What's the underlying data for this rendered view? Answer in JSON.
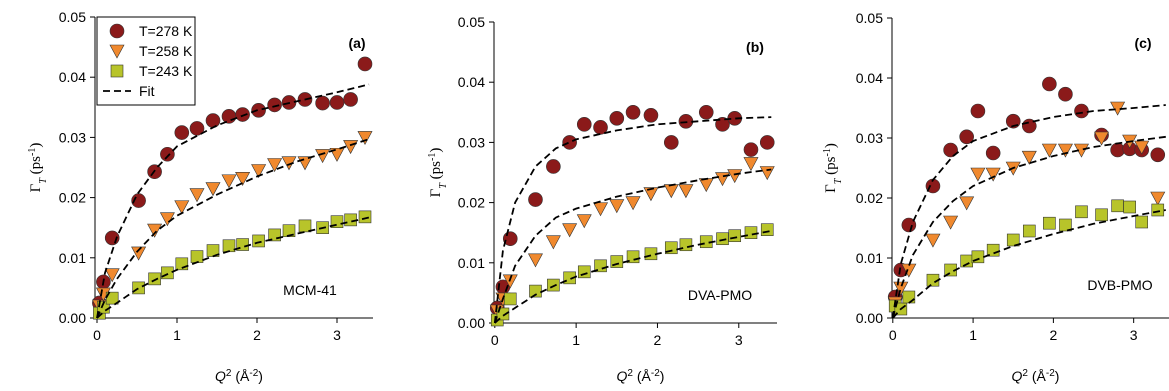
{
  "chart_data": [
    {
      "type": "scatter",
      "annotations": [
        "(a)",
        "MCM-41"
      ],
      "xlabel": [
        "Q",
        "2",
        " (Å",
        "-2",
        ")"
      ],
      "ylabel": [
        "Γ",
        "T",
        " (ps",
        "-1",
        ")"
      ],
      "xlim": [
        -0.025,
        3.45
      ],
      "ylim": [
        0,
        0.05
      ],
      "xticks": [
        0,
        1,
        2,
        3
      ],
      "yticks": [
        {
          "value": 0,
          "label": "0.00"
        },
        0.01,
        0.02,
        0.03,
        0.04,
        0.05
      ],
      "legend": "upper left",
      "series": [
        {
          "name": "T=278 K",
          "color": "#8b1a1a",
          "marker": "circle",
          "x": [
            0.03,
            0.08,
            0.19,
            0.52,
            0.72,
            0.88,
            1.06,
            1.25,
            1.45,
            1.65,
            1.82,
            2.02,
            2.22,
            2.4,
            2.6,
            2.82,
            3.0,
            3.17,
            3.35
          ],
          "values": [
            0.0025,
            0.006,
            0.0133,
            0.0195,
            0.0243,
            0.0272,
            0.0308,
            0.0315,
            0.0328,
            0.0335,
            0.0338,
            0.0345,
            0.0354,
            0.0358,
            0.0363,
            0.0357,
            0.0358,
            0.0363,
            0.0422
          ]
        },
        {
          "name": "T=258 K",
          "color": "#f0892e",
          "marker": "triangle",
          "x": [
            0.03,
            0.08,
            0.19,
            0.52,
            0.72,
            0.88,
            1.06,
            1.25,
            1.45,
            1.65,
            1.82,
            2.02,
            2.22,
            2.4,
            2.6,
            2.82,
            3.0,
            3.17,
            3.35
          ],
          "values": [
            0.002,
            0.004,
            0.0072,
            0.0108,
            0.0146,
            0.0165,
            0.0185,
            0.0205,
            0.0215,
            0.0228,
            0.0232,
            0.0245,
            0.0255,
            0.0258,
            0.0258,
            0.027,
            0.0272,
            0.0285,
            0.03
          ]
        },
        {
          "name": "T=243 K",
          "color": "#b8c42a",
          "marker": "square",
          "x": [
            0.03,
            0.08,
            0.19,
            0.52,
            0.72,
            0.88,
            1.06,
            1.25,
            1.45,
            1.65,
            1.82,
            2.02,
            2.22,
            2.4,
            2.6,
            2.82,
            3.0,
            3.17,
            3.35
          ],
          "values": [
            0.0008,
            0.0018,
            0.0033,
            0.005,
            0.0065,
            0.0075,
            0.009,
            0.0102,
            0.0112,
            0.012,
            0.0122,
            0.0128,
            0.0138,
            0.0145,
            0.0153,
            0.015,
            0.016,
            0.0163,
            0.0168
          ]
        },
        {
          "name": "Fit",
          "color": "#000000",
          "marker": "dashed",
          "x": [
            0,
            0.1,
            0.25,
            0.5,
            0.75,
            1,
            1.5,
            2,
            2.5,
            3,
            3.4
          ],
          "values": [
            0,
            0.0075,
            0.0135,
            0.0205,
            0.025,
            0.0285,
            0.032,
            0.0345,
            0.036,
            0.0375,
            0.0388
          ]
        },
        {
          "color": "#000000",
          "marker": "dashed",
          "x": [
            0,
            0.1,
            0.25,
            0.5,
            0.75,
            1,
            1.5,
            2,
            2.5,
            3,
            3.4
          ],
          "values": [
            0,
            0.003,
            0.0065,
            0.011,
            0.0145,
            0.017,
            0.0205,
            0.0235,
            0.026,
            0.028,
            0.0297
          ]
        },
        {
          "color": "#000000",
          "marker": "dashed",
          "x": [
            0,
            0.1,
            0.25,
            0.5,
            0.75,
            1,
            1.5,
            2,
            2.5,
            3,
            3.4
          ],
          "values": [
            0,
            0.0012,
            0.0025,
            0.0048,
            0.0065,
            0.008,
            0.0105,
            0.0125,
            0.014,
            0.0155,
            0.0167
          ]
        }
      ]
    },
    {
      "type": "scatter",
      "annotations": [
        "(b)",
        "DVA-PMO"
      ],
      "xlabel": [
        "Q",
        "2",
        " (Å",
        "-2",
        ")"
      ],
      "ylabel": [
        "Γ",
        "T",
        " (ps",
        "-1",
        ")"
      ],
      "xlim": [
        -0.01,
        3.47
      ],
      "ylim": [
        0,
        0.05
      ],
      "xticks": [
        0,
        1,
        2,
        3
      ],
      "yticks": [
        {
          "value": 0,
          "label": "0.00"
        },
        0.01,
        0.02,
        0.03,
        0.04,
        0.05
      ],
      "series": [
        {
          "color": "#8b1a1a",
          "marker": "circle",
          "x": [
            0.03,
            0.1,
            0.19,
            0.5,
            0.72,
            0.92,
            1.1,
            1.3,
            1.5,
            1.7,
            1.92,
            2.17,
            2.35,
            2.6,
            2.8,
            2.95,
            3.15,
            3.35
          ],
          "values": [
            0.0025,
            0.006,
            0.014,
            0.0205,
            0.026,
            0.03,
            0.033,
            0.0325,
            0.034,
            0.035,
            0.0345,
            0.03,
            0.0335,
            0.035,
            0.033,
            0.034,
            0.0288,
            0.03
          ]
        },
        {
          "color": "#f0892e",
          "marker": "triangle",
          "x": [
            0.03,
            0.1,
            0.19,
            0.5,
            0.72,
            0.92,
            1.1,
            1.3,
            1.5,
            1.7,
            1.92,
            2.17,
            2.35,
            2.6,
            2.8,
            2.95,
            3.15,
            3.35
          ],
          "values": [
            0.002,
            0.004,
            0.007,
            0.0105,
            0.0135,
            0.0155,
            0.017,
            0.019,
            0.0195,
            0.02,
            0.0215,
            0.022,
            0.022,
            0.023,
            0.024,
            0.0245,
            0.0265,
            0.025
          ]
        },
        {
          "color": "#b8c42a",
          "marker": "square",
          "x": [
            0.03,
            0.1,
            0.19,
            0.5,
            0.72,
            0.92,
            1.1,
            1.3,
            1.5,
            1.7,
            1.92,
            2.17,
            2.35,
            2.6,
            2.8,
            2.95,
            3.15,
            3.35
          ],
          "values": [
            0.0005,
            0.0015,
            0.004,
            0.0053,
            0.0063,
            0.0075,
            0.0085,
            0.0095,
            0.0102,
            0.011,
            0.0115,
            0.0125,
            0.013,
            0.0135,
            0.014,
            0.0145,
            0.015,
            0.0155
          ]
        },
        {
          "color": "#000000",
          "marker": "dashed",
          "x": [
            0,
            0.1,
            0.25,
            0.5,
            0.75,
            1,
            1.5,
            2,
            2.5,
            3,
            3.4
          ],
          "values": [
            0,
            0.012,
            0.02,
            0.026,
            0.029,
            0.0305,
            0.032,
            0.033,
            0.0335,
            0.034,
            0.0342
          ]
        },
        {
          "color": "#000000",
          "marker": "dashed",
          "x": [
            0,
            0.1,
            0.25,
            0.5,
            0.75,
            1,
            1.5,
            2,
            2.5,
            3,
            3.4
          ],
          "values": [
            0,
            0.004,
            0.0095,
            0.0145,
            0.0175,
            0.019,
            0.021,
            0.0225,
            0.0237,
            0.0248,
            0.0255
          ]
        },
        {
          "color": "#000000",
          "marker": "dashed",
          "x": [
            0,
            0.1,
            0.25,
            0.5,
            0.75,
            1,
            1.5,
            2,
            2.5,
            3,
            3.4
          ],
          "values": [
            0,
            0.0012,
            0.0025,
            0.0047,
            0.0063,
            0.0077,
            0.0098,
            0.0115,
            0.013,
            0.0143,
            0.0153
          ]
        }
      ]
    },
    {
      "type": "scatter",
      "annotations": [
        "(c)",
        "DVB-PMO"
      ],
      "xlabel": [
        "Q",
        "2",
        " (Å",
        "-2",
        ")"
      ],
      "ylabel": [
        "Γ",
        "T",
        " (ps",
        "-1",
        ")"
      ],
      "xlim": [
        -0.01,
        3.44
      ],
      "ylim": [
        0,
        0.05
      ],
      "xticks": [
        0,
        1,
        2,
        3
      ],
      "yticks": [
        {
          "value": 0,
          "label": "0.00"
        },
        0.01,
        0.02,
        0.03,
        0.04,
        0.05
      ],
      "series": [
        {
          "color": "#8b1a1a",
          "marker": "circle",
          "x": [
            0.03,
            0.1,
            0.2,
            0.5,
            0.72,
            0.92,
            1.06,
            1.25,
            1.5,
            1.7,
            1.95,
            2.15,
            2.35,
            2.6,
            2.8,
            2.95,
            3.1,
            3.3
          ],
          "values": [
            0.0035,
            0.008,
            0.0155,
            0.022,
            0.028,
            0.0302,
            0.0345,
            0.0275,
            0.0328,
            0.032,
            0.039,
            0.0373,
            0.0345,
            0.0305,
            0.028,
            0.0282,
            0.028,
            0.0272
          ]
        },
        {
          "color": "#f0892e",
          "marker": "triangle",
          "x": [
            0.03,
            0.1,
            0.2,
            0.5,
            0.72,
            0.92,
            1.06,
            1.25,
            1.5,
            1.7,
            1.95,
            2.15,
            2.35,
            2.6,
            2.8,
            2.95,
            3.1,
            3.3
          ],
          "values": [
            0.0025,
            0.005,
            0.008,
            0.013,
            0.016,
            0.0192,
            0.024,
            0.024,
            0.025,
            0.0268,
            0.028,
            0.028,
            0.028,
            0.03,
            0.035,
            0.0295,
            0.0285,
            0.02
          ]
        },
        {
          "color": "#b8c42a",
          "marker": "square",
          "x": [
            0.03,
            0.1,
            0.2,
            0.5,
            0.72,
            0.92,
            1.06,
            1.25,
            1.5,
            1.7,
            1.95,
            2.15,
            2.35,
            2.6,
            2.8,
            2.95,
            3.1,
            3.3
          ],
          "values": [
            0.002,
            0.0015,
            0.0035,
            0.0063,
            0.008,
            0.0095,
            0.0102,
            0.0113,
            0.013,
            0.0145,
            0.0158,
            0.0155,
            0.0177,
            0.0172,
            0.0187,
            0.0185,
            0.016,
            0.018
          ]
        },
        {
          "color": "#000000",
          "marker": "dashed",
          "x": [
            0,
            0.1,
            0.25,
            0.5,
            0.75,
            1,
            1.5,
            2,
            2.5,
            3,
            3.4
          ],
          "values": [
            0,
            0.009,
            0.016,
            0.023,
            0.027,
            0.0295,
            0.032,
            0.0335,
            0.0345,
            0.035,
            0.0355
          ]
        },
        {
          "color": "#000000",
          "marker": "dashed",
          "x": [
            0,
            0.1,
            0.25,
            0.5,
            0.75,
            1,
            1.5,
            2,
            2.5,
            3,
            3.4
          ],
          "values": [
            0,
            0.005,
            0.0105,
            0.016,
            0.0195,
            0.022,
            0.025,
            0.027,
            0.0285,
            0.0295,
            0.0302
          ]
        },
        {
          "color": "#000000",
          "marker": "dashed",
          "x": [
            0,
            0.1,
            0.25,
            0.5,
            0.75,
            1,
            1.5,
            2,
            2.5,
            3,
            3.4
          ],
          "values": [
            0,
            0.0015,
            0.003,
            0.0058,
            0.0078,
            0.0095,
            0.012,
            0.014,
            0.0157,
            0.017,
            0.018
          ]
        }
      ]
    }
  ]
}
